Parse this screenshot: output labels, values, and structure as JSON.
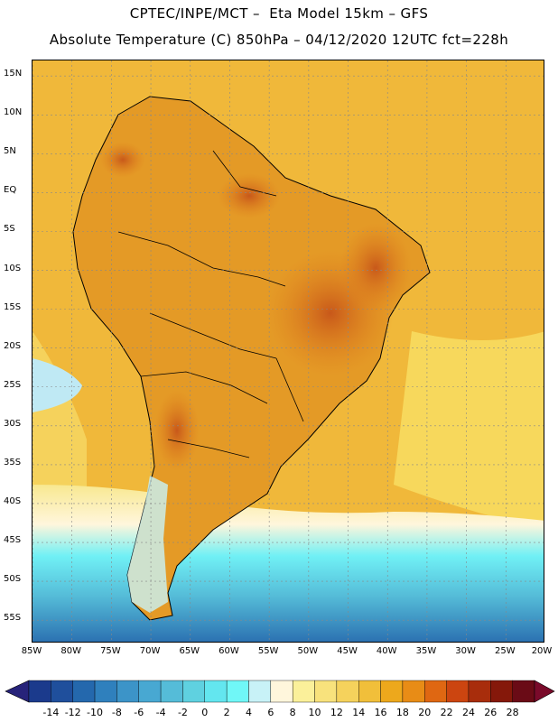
{
  "header": {
    "line1": "CPTEC/INPE/MCT –  Eta Model 15km – GFS",
    "line2": "Absolute Temperature (C) 850hPa – 04/12/2020 12UTC fct=228h"
  },
  "map": {
    "lat_labels": [
      "15N",
      "10N",
      "5N",
      "EQ",
      "5S",
      "10S",
      "15S",
      "20S",
      "25S",
      "30S",
      "35S",
      "40S",
      "45S",
      "50S",
      "55S"
    ],
    "lon_labels": [
      "85W",
      "80W",
      "75W",
      "70W",
      "65W",
      "60W",
      "55W",
      "50W",
      "45W",
      "40W",
      "35W",
      "30W",
      "25W",
      "20W"
    ],
    "extent": {
      "lon_min": -85,
      "lon_max": -20,
      "lat_min": -58,
      "lat_max": 17
    },
    "field_description_colors": {
      "hot": "#c8641e",
      "warm": "#e89a1e",
      "mild": "#f0ba3c",
      "cool": "#f8e27c",
      "cold": "#5ad8e8",
      "very_cold": "#1e82c8"
    }
  },
  "colorbar": {
    "labels": [
      "-14",
      "-12",
      "-10",
      "-8",
      "-6",
      "-4",
      "-2",
      "0",
      "2",
      "4",
      "6",
      "8",
      "10",
      "12",
      "14",
      "16",
      "18",
      "20",
      "22",
      "24",
      "26",
      "28"
    ],
    "colors": [
      "#1b3a8c",
      "#1f4f9c",
      "#2468ad",
      "#2f80bd",
      "#3c94c8",
      "#48a8d2",
      "#55bcd8",
      "#5fd1e0",
      "#63e6ef",
      "#70f7f7",
      "#c8f2f7",
      "#fff6dc",
      "#fbf09a",
      "#f8e27c",
      "#f5d25c",
      "#f1bf3a",
      "#eda81c",
      "#e88c16",
      "#df6712",
      "#cc4510",
      "#a82d0c",
      "#85180a",
      "#6a0b16"
    ],
    "under_color": "#27237a",
    "over_color": "#7a0a2a"
  }
}
